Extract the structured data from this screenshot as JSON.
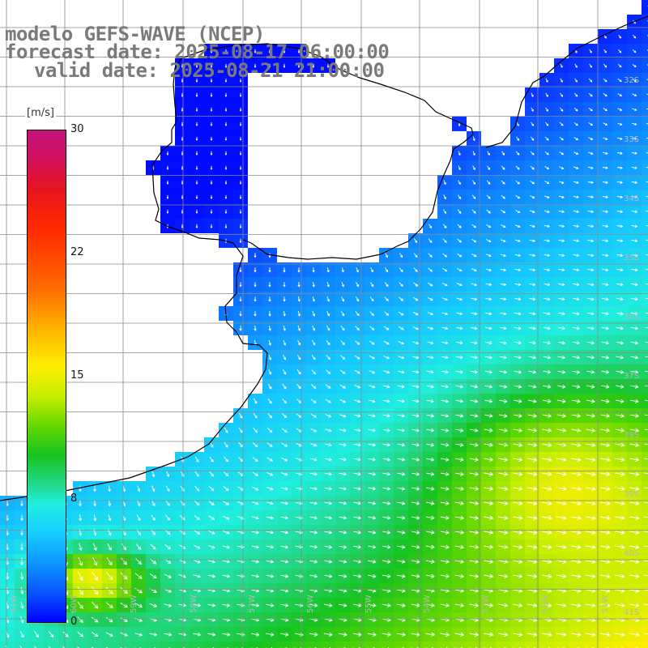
{
  "title": {
    "line1": "modelo GEFS-WAVE (NCEP)",
    "line2": "forecast date: 2025-08-17 06:00:00",
    "line3": "valid date: 2025-08-21 21:00:00"
  },
  "colorbar": {
    "unit": "[m/s]",
    "ticks": [
      "30",
      "22",
      "15",
      "8",
      "0"
    ],
    "min": 0,
    "max": 30
  },
  "lat_labels": [
    "32S",
    "33S",
    "34S",
    "35S",
    "36S",
    "37S",
    "38S",
    "39S",
    "40S",
    "41S"
  ],
  "lon_labels": [
    "61W",
    "60W",
    "59W",
    "58W",
    "57W",
    "56W",
    "55W",
    "54W",
    "53W",
    "52W",
    "51W"
  ],
  "colors": {
    "land": "#ffffff",
    "grid": "#808080",
    "coast": "#000000",
    "arrows": "#ffffff",
    "title": "#7a7a7a"
  }
}
